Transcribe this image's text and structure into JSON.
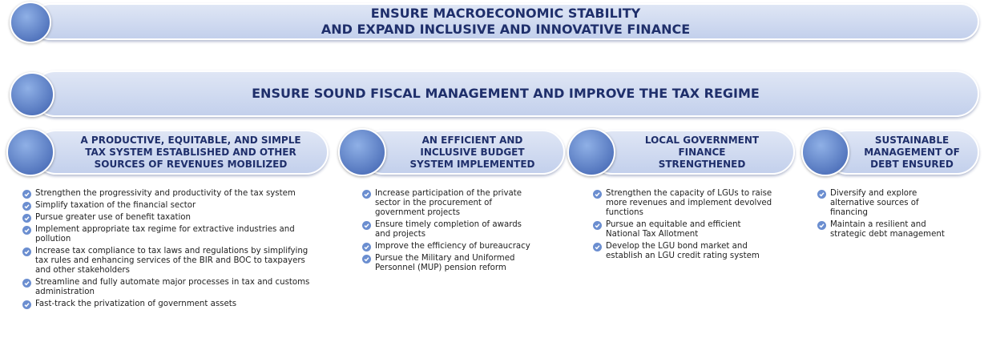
{
  "banners": [
    {
      "title": [
        "ENSURE MACROECONOMIC STABILITY",
        "AND EXPAND INCLUSIVE AND INNOVATIVE FINANCE"
      ]
    },
    {
      "title": [
        "ENSURE SOUND FISCAL MANAGEMENT AND IMPROVE THE TAX REGIME"
      ]
    }
  ],
  "columns": [
    {
      "title": [
        "A PRODUCTIVE, EQUITABLE, AND SIMPLE",
        "TAX SYSTEM ESTABLISHED AND OTHER",
        "SOURCES OF REVENUES MOBILIZED"
      ],
      "items": [
        "Strengthen the progressivity and productivity of the tax system",
        "Simplify taxation of the financial sector",
        "Pursue greater use of benefit taxation",
        "Implement appropriate tax regime for extractive industries and pollution",
        "Increase tax compliance to tax laws and regulations by simplifying tax rules and enhancing services of the BIR and BOC to taxpayers and other stakeholders",
        "Streamline and fully automate major processes in tax and customs administration",
        "Fast-track the privatization of government assets"
      ]
    },
    {
      "title": [
        "AN EFFICIENT AND",
        "INCLUSIVE BUDGET",
        "SYSTEM IMPLEMENTED"
      ],
      "items": [
        "Increase participation of the private sector in the procurement of government projects",
        "Ensure timely completion of awards and projects",
        "Improve the efficiency of bureaucracy",
        "Pursue the Military and Uniformed Personnel (MUP) pension reform"
      ]
    },
    {
      "title": [
        "LOCAL GOVERNMENT",
        "FINANCE",
        "STRENGTHENED"
      ],
      "items": [
        "Strengthen the capacity of LGUs to raise more revenues and implement devolved functions",
        "Pursue an equitable and efficient National Tax Allotment",
        "Develop the LGU bond market and establish an LGU credit rating system"
      ]
    },
    {
      "title": [
        "SUSTAINABLE",
        "MANAGEMENT OF",
        "DEBT ENSURED"
      ],
      "items": [
        "Diversify and explore alternative sources of financing",
        "Maintain a resilient and strategic debt management"
      ]
    }
  ]
}
